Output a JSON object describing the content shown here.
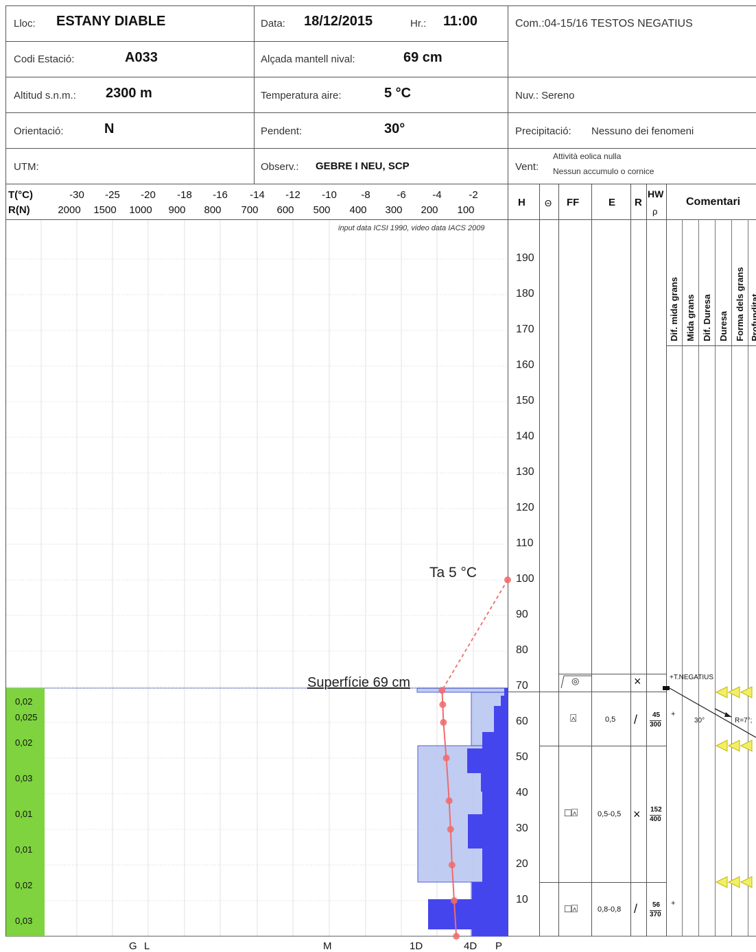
{
  "header": {
    "lloc_label": "Lloc:",
    "lloc": "ESTANY DIABLE",
    "data_label": "Data:",
    "data": "18/12/2015",
    "hr_label": "Hr.:",
    "hr": "11:00",
    "com": "Com.:04-15/16 TESTOS NEGATIUS",
    "codi_label": "Codi Estació:",
    "codi": "A033",
    "alcada_label": "Alçada mantell nival:",
    "alcada": "69 cm",
    "altitud_label": "Altitud s.n.m.:",
    "altitud": "2300 m",
    "temp_label": "Temperatura aire:",
    "temp": "5 °C",
    "nuv": "Nuv.: Sereno",
    "orient_label": "Orientació:",
    "orient": "N",
    "pendent_label": "Pendent:",
    "pendent": "30°",
    "precip_label": "Precipitació:",
    "precip": "Nessuno dei fenomeni",
    "utm_label": "UTM:",
    "observ_label": "Observ.:",
    "observ": "GEBRE I NEU, SCP",
    "vent_label": "Vent:",
    "vent_1": "Attività eolica nulla",
    "vent_2": "Nessun accumulo o cornice"
  },
  "columns": {
    "t_label": "T(°C)",
    "r_label": "R(N)",
    "h": "H",
    "theta": "Θ",
    "ff": "FF",
    "e": "E",
    "r": "R",
    "hw": "HW",
    "rho": "ρ",
    "comentari": "Comentari",
    "grain_headers": [
      "Dif. mida grans",
      "Mida grans",
      "Dif. Duresa",
      "Duresa",
      "Forma dels grans",
      "Profunditat"
    ]
  },
  "source_note": "input data ICSI 1990, video data IACS 2009",
  "chart_data": {
    "type": "line",
    "x_temperature_ticks": [
      "-30",
      "-25",
      "-20",
      "-18",
      "-16",
      "-14",
      "-12",
      "-10",
      "-8",
      "-6",
      "-4",
      "-2"
    ],
    "x_resistance_ticks": [
      "2000",
      "1500",
      "1000",
      "900",
      "800",
      "700",
      "600",
      "500",
      "400",
      "300",
      "200",
      "100"
    ],
    "y_height_ticks": [
      "190",
      "180",
      "170",
      "160",
      "150",
      "140",
      "130",
      "120",
      "110",
      "100",
      "90",
      "80",
      "70",
      "60",
      "50",
      "40",
      "30",
      "20",
      "10"
    ],
    "bottom_labels": [
      "G",
      "L",
      "M",
      "1D",
      "4D",
      "P"
    ],
    "air_temp_annotation": "Ta  5 °C",
    "surface_annotation": "Superfície  69 cm",
    "temperature_profile": [
      {
        "h": 100,
        "t": 5
      },
      {
        "h": 69,
        "t": -4.2
      },
      {
        "h": 65,
        "t": -4.1
      },
      {
        "h": 60,
        "t": -4.0
      },
      {
        "h": 50,
        "t": -3.6
      },
      {
        "h": 38,
        "t": -3.2
      },
      {
        "h": 30,
        "t": -3.0
      },
      {
        "h": 20,
        "t": -2.8
      },
      {
        "h": 10,
        "t": -2.5
      },
      {
        "h": 0,
        "t": -2.2
      }
    ],
    "density_labels": [
      "0,02",
      "0,025",
      "0,02",
      "0,03",
      "0,01",
      "0,01",
      "0,02",
      "0,03"
    ],
    "layers": [
      {
        "ff": "◎",
        "e": "",
        "r": "×",
        "hw": "",
        "rho": "",
        "comment": "+T.NEGATIUS"
      },
      {
        "ff": "⍓",
        "e": "0,5",
        "r": "/",
        "hw": "45",
        "rho": "300",
        "comment": "+"
      },
      {
        "ff": "□⍓",
        "e": "0,5-0,5",
        "r": "×",
        "hw": "152",
        "rho": "400",
        "comment": ""
      },
      {
        "ff": "□⍓",
        "e": "0,8-0,8",
        "r": "/",
        "hw": "56",
        "rho": "370",
        "comment": "+"
      }
    ],
    "slope_note": "30°",
    "r_note": "R=7°;"
  }
}
